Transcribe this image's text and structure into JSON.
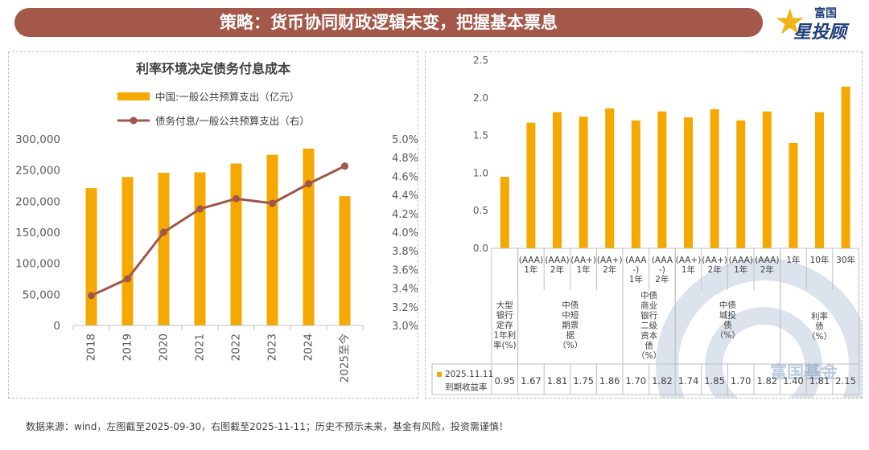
{
  "header": {
    "title": "策略：货币协同财政逻辑未变，把握基本票息"
  },
  "logo": {
    "line1": "富国",
    "line2": "星投顾",
    "star_glyph": "★"
  },
  "watermark": {
    "text": "富国基金"
  },
  "footer": {
    "text": "数据来源：wind，左图截至2025-09-30，右图截至2025-11-11；历史不预示未来，基金有风险，投资需谨慎！"
  },
  "chart_data": [
    {
      "type": "bar+line",
      "title": "利率环境决定债务付息成本",
      "categories": [
        "2018",
        "2019",
        "2020",
        "2021",
        "2022",
        "2023",
        "2024",
        "2025至今"
      ],
      "series": [
        {
          "name": "中国:一般公共预算支出（亿元）",
          "type": "bar",
          "axis": "left",
          "color": "#f5a800",
          "values": [
            220906,
            238874,
            245679,
            246322,
            260552,
            274574,
            284612,
            207989
          ]
        },
        {
          "name": "债务付息/一般公共预算支出（右）",
          "type": "line",
          "axis": "right",
          "color": "#a0564a",
          "values": [
            3.32,
            3.5,
            4.0,
            4.25,
            4.36,
            4.31,
            4.52,
            4.71
          ]
        }
      ],
      "y_left": {
        "min": 0,
        "max": 300000,
        "ticks": [
          "0",
          "50,000",
          "100,000",
          "150,000",
          "200,000",
          "250,000",
          "300,000"
        ]
      },
      "y_right": {
        "min": 3.0,
        "max": 5.0,
        "ticks": [
          "3.0%",
          "3.2%",
          "3.4%",
          "3.6%",
          "3.8%",
          "4.0%",
          "4.2%",
          "4.4%",
          "4.6%",
          "4.8%",
          "5.0%"
        ]
      }
    },
    {
      "type": "bar",
      "y": {
        "min": 0,
        "max": 2.5,
        "ticks": [
          "0.0",
          "0.5",
          "1.0",
          "1.5",
          "2.0",
          "2.5"
        ]
      },
      "bar_color": "#f5a800",
      "series_name": "2025.11.11 到期收益率",
      "series_name_lines": [
        "2025.11.11",
        "到期收益率"
      ],
      "bars": [
        {
          "label": [
            "",
            "",
            ""
          ],
          "value": 0.95,
          "value_label": "0.95"
        },
        {
          "label": [
            "(AAA)",
            "1年"
          ],
          "value": 1.67,
          "value_label": "1.67"
        },
        {
          "label": [
            "(AAA)",
            "2年"
          ],
          "value": 1.81,
          "value_label": "1.81"
        },
        {
          "label": [
            "(AA+)",
            "1年"
          ],
          "value": 1.75,
          "value_label": "1.75"
        },
        {
          "label": [
            "(AA+)",
            "2年"
          ],
          "value": 1.86,
          "value_label": "1.86"
        },
        {
          "label": [
            "(AAA",
            "-)",
            "1年"
          ],
          "value": 1.7,
          "value_label": "1.70"
        },
        {
          "label": [
            "(AAA",
            "-)",
            "2年"
          ],
          "value": 1.82,
          "value_label": "1.82"
        },
        {
          "label": [
            "(AA+)",
            "1年"
          ],
          "value": 1.74,
          "value_label": "1.74"
        },
        {
          "label": [
            "(AA+)",
            "2年"
          ],
          "value": 1.85,
          "value_label": "1.85"
        },
        {
          "label": [
            "(AAA)",
            "1年"
          ],
          "value": 1.7,
          "value_label": "1.70"
        },
        {
          "label": [
            "(AAA)",
            "2年"
          ],
          "value": 1.82,
          "value_label": "1.82"
        },
        {
          "label": [
            "1年"
          ],
          "value": 1.4,
          "value_label": "1.40"
        },
        {
          "label": [
            "10年"
          ],
          "value": 1.81,
          "value_label": "1.81"
        },
        {
          "label": [
            "30年"
          ],
          "value": 2.15,
          "value_label": "2.15"
        }
      ],
      "groups": [
        {
          "name": "大型银行定存1年利率(%)",
          "lines": [
            "大型",
            "银行",
            "定存",
            "1年利",
            "率(%)"
          ],
          "start": 0,
          "end": 0
        },
        {
          "name": "中债中短期票据（%）",
          "lines": [
            "中债",
            "中短",
            "期票",
            "据",
            "（%）"
          ],
          "start": 1,
          "end": 4
        },
        {
          "name": "中债商业银行二级资本债（%）",
          "lines": [
            "中债",
            "商业",
            "银行",
            "二级",
            "资本",
            "债",
            "（%）"
          ],
          "start": 5,
          "end": 6
        },
        {
          "name": "中债城投债（%）",
          "lines": [
            "中债",
            "城投",
            "债",
            "（%）"
          ],
          "start": 7,
          "end": 10
        },
        {
          "name": "利率债（%）",
          "lines": [
            "利率",
            "债",
            "（%）"
          ],
          "start": 11,
          "end": 13
        }
      ]
    }
  ]
}
